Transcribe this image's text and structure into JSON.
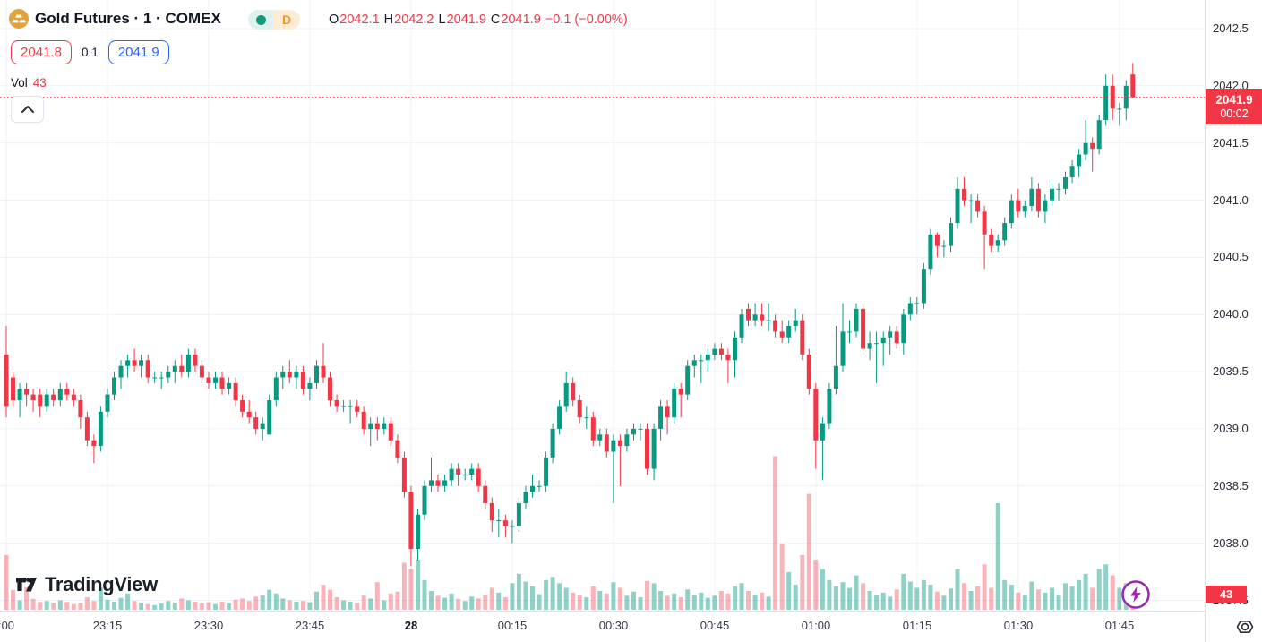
{
  "header": {
    "symbol_title": "Gold Futures · 1 · COMEX",
    "market_status_icon": "green-dot",
    "interval_badge": "D",
    "ohlc": {
      "o_label": "O",
      "o_value": "2042.1",
      "h_label": "H",
      "h_value": "2042.2",
      "l_label": "L",
      "l_value": "2041.9",
      "c_label": "C",
      "c_value": "2041.9",
      "change_value": "−0.1 (−0.00%)"
    },
    "quote": {
      "bid": "2041.8",
      "spread": "0.1",
      "ask": "2041.9"
    },
    "volume_row": {
      "label": "Vol",
      "value": "43"
    }
  },
  "price_axis": {
    "current": {
      "price": "2041.9",
      "countdown": "00:02"
    },
    "volume_badge": "43"
  },
  "footer": {
    "logo_text": "TradingView"
  },
  "colors": {
    "up_green": "#089981",
    "down_red": "#f23645",
    "volume_up": "rgba(8,153,129,0.45)",
    "volume_down": "rgba(242,54,69,0.38)",
    "interval_orange": "#f7921e",
    "ask_blue": "#2962ff",
    "lightning_purple": "#9c27b0",
    "gold_icon": "#e0a339",
    "grid": "#eef1f7"
  },
  "chart_data": {
    "type": "candlestick",
    "title": "Gold Futures 1-minute, COMEX",
    "interval_minutes": 1,
    "legend_last_bar": {
      "open": 2042.1,
      "high": 2042.2,
      "low": 2041.9,
      "close": 2041.9,
      "change": -0.1,
      "change_pct": -0.0
    },
    "last_price": 2041.9,
    "last_volume": 43,
    "price_ticks": [
      "2042.5",
      "2042.0",
      "2041.5",
      "2041.0",
      "2040.5",
      "2040.0",
      "2039.5",
      "2039.0",
      "2038.5",
      "2038.0",
      "2037.5"
    ],
    "time_ticks": [
      ":00",
      "23:15",
      "23:30",
      "23:45",
      "28",
      "00:15",
      "00:30",
      "00:45",
      "01:00",
      "01:15",
      "01:30",
      "01:45"
    ],
    "bold_time_tick_index": 4,
    "y_range": [
      2037.4,
      2042.75
    ],
    "candles": [
      [
        2039.65,
        2039.9,
        2039.1,
        2039.2
      ],
      [
        2039.45,
        2039.5,
        2039.2,
        2039.25
      ],
      [
        2039.25,
        2039.4,
        2039.1,
        2039.35
      ],
      [
        2039.35,
        2039.4,
        2039.2,
        2039.3
      ],
      [
        2039.3,
        2039.35,
        2039.15,
        2039.25
      ],
      [
        2039.3,
        2039.35,
        2039.1,
        2039.2
      ],
      [
        2039.2,
        2039.35,
        2039.15,
        2039.3
      ],
      [
        2039.3,
        2039.35,
        2039.2,
        2039.25
      ],
      [
        2039.25,
        2039.4,
        2039.2,
        2039.35
      ],
      [
        2039.35,
        2039.4,
        2039.25,
        2039.3
      ],
      [
        2039.3,
        2039.35,
        2039.2,
        2039.25
      ],
      [
        2039.25,
        2039.3,
        2039.0,
        2039.1
      ],
      [
        2039.1,
        2039.15,
        2038.85,
        2038.9
      ],
      [
        2038.9,
        2038.95,
        2038.7,
        2038.85
      ],
      [
        2038.85,
        2039.2,
        2038.8,
        2039.15
      ],
      [
        2039.15,
        2039.35,
        2039.1,
        2039.3
      ],
      [
        2039.3,
        2039.5,
        2039.25,
        2039.45
      ],
      [
        2039.45,
        2039.6,
        2039.35,
        2039.55
      ],
      [
        2039.55,
        2039.65,
        2039.45,
        2039.6
      ],
      [
        2039.6,
        2039.7,
        2039.5,
        2039.55
      ],
      [
        2039.55,
        2039.65,
        2039.45,
        2039.6
      ],
      [
        2039.6,
        2039.65,
        2039.4,
        2039.45
      ],
      [
        2039.45,
        2039.5,
        2039.4,
        2039.45
      ],
      [
        2039.45,
        2039.5,
        2039.35,
        2039.45
      ],
      [
        2039.45,
        2039.55,
        2039.4,
        2039.5
      ],
      [
        2039.5,
        2039.6,
        2039.4,
        2039.55
      ],
      [
        2039.55,
        2039.65,
        2039.45,
        2039.5
      ],
      [
        2039.5,
        2039.7,
        2039.45,
        2039.65
      ],
      [
        2039.65,
        2039.7,
        2039.5,
        2039.55
      ],
      [
        2039.55,
        2039.6,
        2039.4,
        2039.45
      ],
      [
        2039.45,
        2039.5,
        2039.35,
        2039.4
      ],
      [
        2039.4,
        2039.5,
        2039.35,
        2039.45
      ],
      [
        2039.45,
        2039.5,
        2039.3,
        2039.35
      ],
      [
        2039.35,
        2039.45,
        2039.3,
        2039.4
      ],
      [
        2039.4,
        2039.45,
        2039.2,
        2039.25
      ],
      [
        2039.25,
        2039.3,
        2039.1,
        2039.15
      ],
      [
        2039.15,
        2039.25,
        2039.05,
        2039.1
      ],
      [
        2039.1,
        2039.15,
        2038.95,
        2039.0
      ],
      [
        2039.0,
        2039.1,
        2038.9,
        2039.05
      ],
      [
        2038.95,
        2039.3,
        2038.95,
        2039.25
      ],
      [
        2039.25,
        2039.5,
        2039.2,
        2039.45
      ],
      [
        2039.45,
        2039.55,
        2039.35,
        2039.5
      ],
      [
        2039.5,
        2039.6,
        2039.4,
        2039.45
      ],
      [
        2039.45,
        2039.55,
        2039.35,
        2039.5
      ],
      [
        2039.5,
        2039.55,
        2039.3,
        2039.35
      ],
      [
        2039.35,
        2039.45,
        2039.25,
        2039.4
      ],
      [
        2039.4,
        2039.6,
        2039.35,
        2039.55
      ],
      [
        2039.55,
        2039.75,
        2039.4,
        2039.45
      ],
      [
        2039.45,
        2039.5,
        2039.2,
        2039.25
      ],
      [
        2039.25,
        2039.3,
        2039.15,
        2039.2
      ],
      [
        2039.2,
        2039.25,
        2039.15,
        2039.2
      ],
      [
        2039.2,
        2039.25,
        2039.05,
        2039.2
      ],
      [
        2039.2,
        2039.25,
        2039.1,
        2039.15
      ],
      [
        2039.15,
        2039.2,
        2038.95,
        2039.0
      ],
      [
        2039.0,
        2039.1,
        2038.85,
        2039.05
      ],
      [
        2039.05,
        2039.1,
        2038.9,
        2039.0
      ],
      [
        2039.0,
        2039.1,
        2038.95,
        2039.05
      ],
      [
        2039.05,
        2039.1,
        2038.85,
        2038.9
      ],
      [
        2038.9,
        2038.95,
        2038.7,
        2038.75
      ],
      [
        2038.75,
        2038.8,
        2038.4,
        2038.45
      ],
      [
        2038.45,
        2038.5,
        2037.8,
        2037.95
      ],
      [
        2037.95,
        2038.3,
        2037.85,
        2038.25
      ],
      [
        2038.25,
        2038.55,
        2038.2,
        2038.5
      ],
      [
        2038.5,
        2038.75,
        2038.45,
        2038.55
      ],
      [
        2038.55,
        2038.6,
        2038.45,
        2038.5
      ],
      [
        2038.5,
        2038.6,
        2038.45,
        2038.55
      ],
      [
        2038.55,
        2038.7,
        2038.5,
        2038.65
      ],
      [
        2038.65,
        2038.7,
        2038.5,
        2038.6
      ],
      [
        2038.6,
        2038.65,
        2038.55,
        2038.6
      ],
      [
        2038.6,
        2038.7,
        2038.55,
        2038.65
      ],
      [
        2038.65,
        2038.7,
        2038.45,
        2038.5
      ],
      [
        2038.5,
        2038.55,
        2038.3,
        2038.35
      ],
      [
        2038.35,
        2038.4,
        2038.1,
        2038.2
      ],
      [
        2038.2,
        2038.3,
        2038.05,
        2038.2
      ],
      [
        2038.2,
        2038.25,
        2038.05,
        2038.15
      ],
      [
        2038.15,
        2038.2,
        2038.0,
        2038.15
      ],
      [
        2038.15,
        2038.4,
        2038.1,
        2038.35
      ],
      [
        2038.35,
        2038.5,
        2038.3,
        2038.45
      ],
      [
        2038.45,
        2038.6,
        2038.4,
        2038.5
      ],
      [
        2038.5,
        2038.55,
        2038.45,
        2038.5
      ],
      [
        2038.5,
        2038.8,
        2038.45,
        2038.75
      ],
      [
        2038.75,
        2039.05,
        2038.7,
        2039.0
      ],
      [
        2039.0,
        2039.25,
        2038.95,
        2039.2
      ],
      [
        2039.2,
        2039.5,
        2039.15,
        2039.4
      ],
      [
        2039.4,
        2039.45,
        2039.2,
        2039.25
      ],
      [
        2039.25,
        2039.3,
        2039.05,
        2039.1
      ],
      [
        2039.1,
        2039.2,
        2039.0,
        2039.1
      ],
      [
        2039.1,
        2039.15,
        2038.85,
        2038.9
      ],
      [
        2038.9,
        2039.0,
        2038.85,
        2038.95
      ],
      [
        2038.95,
        2039.0,
        2038.75,
        2038.8
      ],
      [
        2038.8,
        2038.95,
        2038.35,
        2038.9
      ],
      [
        2038.9,
        2038.95,
        2038.5,
        2038.85
      ],
      [
        2038.85,
        2039.0,
        2038.8,
        2038.95
      ],
      [
        2038.95,
        2039.05,
        2038.9,
        2039.0
      ],
      [
        2039.0,
        2039.05,
        2038.9,
        2039.0
      ],
      [
        2039.0,
        2039.05,
        2038.6,
        2038.65
      ],
      [
        2038.65,
        2039.05,
        2038.55,
        2039.0
      ],
      [
        2039.0,
        2039.25,
        2038.9,
        2039.2
      ],
      [
        2039.2,
        2039.25,
        2038.95,
        2039.1
      ],
      [
        2039.1,
        2039.4,
        2039.05,
        2039.35
      ],
      [
        2039.35,
        2039.4,
        2039.1,
        2039.3
      ],
      [
        2039.3,
        2039.6,
        2039.25,
        2039.55
      ],
      [
        2039.55,
        2039.65,
        2039.45,
        2039.6
      ],
      [
        2039.6,
        2039.65,
        2039.4,
        2039.6
      ],
      [
        2039.6,
        2039.7,
        2039.5,
        2039.65
      ],
      [
        2039.65,
        2039.75,
        2039.6,
        2039.7
      ],
      [
        2039.7,
        2039.75,
        2039.6,
        2039.65
      ],
      [
        2039.65,
        2039.7,
        2039.4,
        2039.6
      ],
      [
        2039.6,
        2039.85,
        2039.45,
        2039.8
      ],
      [
        2039.8,
        2040.05,
        2039.75,
        2040.0
      ],
      [
        2040.05,
        2040.1,
        2039.9,
        2039.95
      ],
      [
        2039.95,
        2040.1,
        2039.9,
        2040.0
      ],
      [
        2040.0,
        2040.1,
        2039.9,
        2039.95
      ],
      [
        2039.95,
        2040.1,
        2039.85,
        2039.95
      ],
      [
        2039.95,
        2040.0,
        2039.8,
        2039.85
      ],
      [
        2039.85,
        2039.95,
        2039.75,
        2039.8
      ],
      [
        2039.8,
        2039.95,
        2039.75,
        2039.9
      ],
      [
        2039.9,
        2040.05,
        2039.85,
        2039.95
      ],
      [
        2039.95,
        2040.0,
        2039.6,
        2039.65
      ],
      [
        2039.65,
        2039.7,
        2039.3,
        2039.35
      ],
      [
        2039.35,
        2039.4,
        2038.65,
        2038.9
      ],
      [
        2038.9,
        2039.1,
        2038.55,
        2039.05
      ],
      [
        2039.05,
        2039.4,
        2039.0,
        2039.35
      ],
      [
        2039.35,
        2039.9,
        2039.3,
        2039.55
      ],
      [
        2039.55,
        2040.1,
        2039.5,
        2039.85
      ],
      [
        2039.85,
        2039.95,
        2039.75,
        2039.85
      ],
      [
        2039.85,
        2040.1,
        2039.8,
        2040.05
      ],
      [
        2040.05,
        2040.1,
        2039.65,
        2039.7
      ],
      [
        2039.7,
        2039.85,
        2039.6,
        2039.75
      ],
      [
        2039.75,
        2039.85,
        2039.4,
        2039.75
      ],
      [
        2039.75,
        2039.85,
        2039.55,
        2039.8
      ],
      [
        2039.8,
        2039.9,
        2039.65,
        2039.85
      ],
      [
        2039.85,
        2039.9,
        2039.7,
        2039.75
      ],
      [
        2039.75,
        2040.05,
        2039.65,
        2040.0
      ],
      [
        2040.0,
        2040.15,
        2039.95,
        2040.1
      ],
      [
        2040.1,
        2040.15,
        2040.0,
        2040.1
      ],
      [
        2040.1,
        2040.45,
        2040.05,
        2040.4
      ],
      [
        2040.4,
        2040.75,
        2040.35,
        2040.7
      ],
      [
        2040.7,
        2040.72,
        2040.5,
        2040.6
      ],
      [
        2040.6,
        2040.65,
        2040.5,
        2040.6
      ],
      [
        2040.6,
        2040.85,
        2040.55,
        2040.8
      ],
      [
        2040.8,
        2041.2,
        2040.75,
        2041.1
      ],
      [
        2041.1,
        2041.2,
        2040.95,
        2041.0
      ],
      [
        2041.0,
        2041.05,
        2040.8,
        2041.0
      ],
      [
        2041.0,
        2041.05,
        2040.85,
        2040.9
      ],
      [
        2040.9,
        2040.95,
        2040.4,
        2040.7
      ],
      [
        2040.7,
        2040.75,
        2040.55,
        2040.6
      ],
      [
        2040.6,
        2040.7,
        2040.55,
        2040.65
      ],
      [
        2040.65,
        2040.85,
        2040.6,
        2040.8
      ],
      [
        2040.8,
        2041.05,
        2040.75,
        2041.0
      ],
      [
        2041.0,
        2041.1,
        2040.85,
        2040.9
      ],
      [
        2040.9,
        2041.0,
        2040.85,
        2040.95
      ],
      [
        2040.95,
        2041.2,
        2040.9,
        2041.1
      ],
      [
        2041.1,
        2041.15,
        2040.85,
        2040.9
      ],
      [
        2040.9,
        2041.05,
        2040.8,
        2041.0
      ],
      [
        2041.0,
        2041.15,
        2040.95,
        2041.1
      ],
      [
        2041.1,
        2041.15,
        2041.0,
        2041.1
      ],
      [
        2041.1,
        2041.25,
        2041.05,
        2041.2
      ],
      [
        2041.2,
        2041.35,
        2041.15,
        2041.3
      ],
      [
        2041.3,
        2041.45,
        2041.2,
        2041.4
      ],
      [
        2041.4,
        2041.7,
        2041.35,
        2041.5
      ],
      [
        2041.5,
        2041.55,
        2041.25,
        2041.45
      ],
      [
        2041.45,
        2041.75,
        2041.4,
        2041.7
      ],
      [
        2041.7,
        2042.1,
        2041.65,
        2042.0
      ],
      [
        2042.0,
        2042.1,
        2041.7,
        2041.8
      ],
      [
        2041.8,
        2041.85,
        2041.65,
        2041.8
      ],
      [
        2041.8,
        2042.05,
        2041.7,
        2042.0
      ],
      [
        2042.1,
        2042.2,
        2041.9,
        2041.9
      ]
    ],
    "volumes": [
      175,
      63,
      30,
      72,
      35,
      25,
      28,
      22,
      30,
      25,
      18,
      22,
      40,
      28,
      70,
      32,
      26,
      38,
      52,
      28,
      22,
      18,
      15,
      20,
      28,
      22,
      36,
      30,
      26,
      20,
      24,
      18,
      26,
      20,
      32,
      36,
      28,
      42,
      46,
      64,
      52,
      36,
      30,
      26,
      28,
      24,
      58,
      80,
      64,
      40,
      30,
      26,
      22,
      46,
      36,
      88,
      30,
      52,
      58,
      150,
      130,
      160,
      95,
      60,
      45,
      38,
      52,
      35,
      28,
      42,
      36,
      48,
      70,
      55,
      40,
      85,
      115,
      90,
      75,
      50,
      95,
      105,
      85,
      70,
      55,
      48,
      40,
      75,
      60,
      52,
      88,
      70,
      45,
      58,
      40,
      92,
      85,
      60,
      45,
      52,
      40,
      65,
      48,
      55,
      38,
      45,
      60,
      52,
      75,
      85,
      60,
      48,
      55,
      42,
      490,
      210,
      120,
      80,
      175,
      370,
      160,
      130,
      95,
      75,
      88,
      70,
      110,
      85,
      60,
      48,
      55,
      42,
      65,
      115,
      90,
      70,
      95,
      80,
      58,
      45,
      68,
      130,
      85,
      60,
      75,
      145,
      70,
      340,
      95,
      80,
      55,
      48,
      90,
      65,
      55,
      70,
      48,
      85,
      75,
      95,
      115,
      70,
      130,
      145,
      110,
      70,
      85,
      43
    ]
  }
}
